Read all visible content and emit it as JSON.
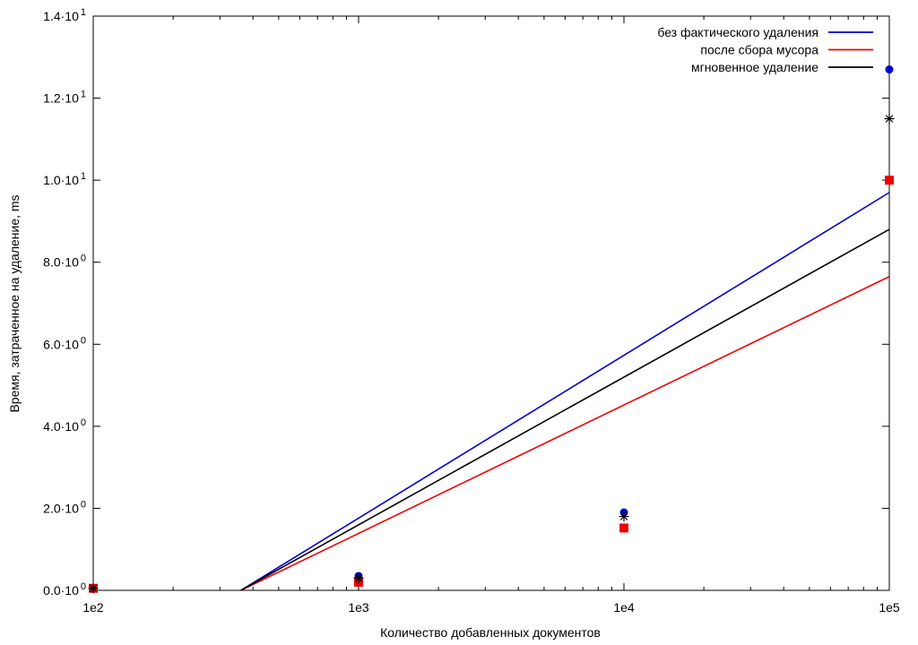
{
  "chart_data": {
    "type": "line",
    "x_scale": "log",
    "y_scale": "linear",
    "xlabel": "Количество добавленных документов",
    "ylabel": "Время, затраченное на удаление, ms",
    "xlim": [
      100,
      100000
    ],
    "ylim": [
      0,
      14
    ],
    "grid": false,
    "legend_position": "top-right",
    "x_ticks": [
      {
        "value": 100,
        "label": "1e2"
      },
      {
        "value": 1000,
        "label": "1e3"
      },
      {
        "value": 10000,
        "label": "1e4"
      },
      {
        "value": 100000,
        "label": "1e5"
      }
    ],
    "y_ticks": [
      {
        "value": 0,
        "mant": "0.0",
        "exp": "0"
      },
      {
        "value": 2,
        "mant": "2.0",
        "exp": "0"
      },
      {
        "value": 4,
        "mant": "4.0",
        "exp": "0"
      },
      {
        "value": 6,
        "mant": "6.0",
        "exp": "0"
      },
      {
        "value": 8,
        "mant": "8.0",
        "exp": "0"
      },
      {
        "value": 10,
        "mant": "1.0",
        "exp": "1"
      },
      {
        "value": 12,
        "mant": "1.2",
        "exp": "1"
      },
      {
        "value": 14,
        "mant": "1.4",
        "exp": "1"
      }
    ],
    "y_tick_base": "10",
    "series": [
      {
        "name": "без фактического удаления",
        "color": "#0000cc",
        "marker": "circle",
        "points": [
          [
            100,
            0.05
          ],
          [
            1000,
            0.35
          ],
          [
            10000,
            1.9
          ],
          [
            100000,
            12.7
          ]
        ],
        "fit": [
          [
            360,
            0
          ],
          [
            100000,
            9.7
          ]
        ]
      },
      {
        "name": "после сбора мусора",
        "color": "#ee0000",
        "marker": "square",
        "points": [
          [
            100,
            0.05
          ],
          [
            1000,
            0.2
          ],
          [
            10000,
            1.52
          ],
          [
            100000,
            10.0
          ]
        ],
        "fit": [
          [
            360,
            0
          ],
          [
            100000,
            7.65
          ]
        ]
      },
      {
        "name": "мгновенное удаление",
        "color": "#000000",
        "marker": "star",
        "points": [
          [
            100,
            0.05
          ],
          [
            1000,
            0.3
          ],
          [
            10000,
            1.8
          ],
          [
            100000,
            11.5
          ]
        ],
        "fit": [
          [
            360,
            0
          ],
          [
            100000,
            8.8
          ]
        ]
      }
    ]
  }
}
